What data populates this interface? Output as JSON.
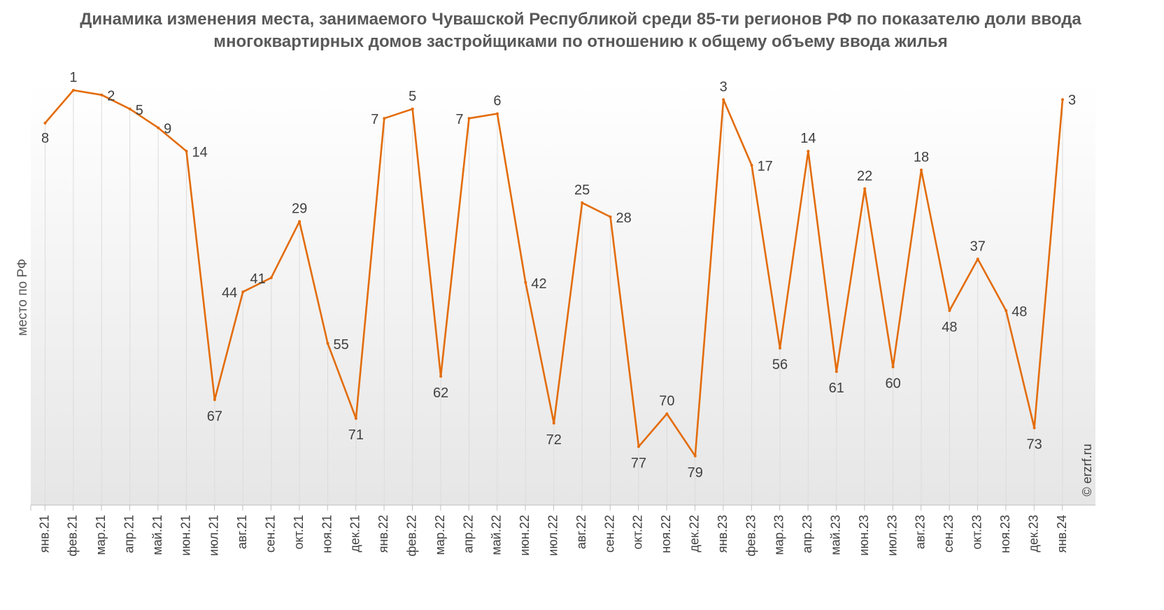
{
  "chart_data": {
    "type": "line",
    "title": "Динамика изменения места, занимаемого Чувашской Республикой среди 85-ти регионов РФ по показателю доли ввода многоквартирных домов застройщиками по отношению к общему объему ввода жилья",
    "ylabel": "место по РФ",
    "xlabel": "",
    "y_reversed": true,
    "ylim": [
      85,
      1
    ],
    "grid": "vertical",
    "line_color": "#E36C0A",
    "categories": [
      "янв.21",
      "фев.21",
      "мар.21",
      "апр.21",
      "май.21",
      "июн.21",
      "июл.21",
      "авг.21",
      "сен.21",
      "окт.21",
      "ноя.21",
      "дек.21",
      "янв.22",
      "фев.22",
      "мар.22",
      "апр.22",
      "май.22",
      "июн.22",
      "июл.22",
      "авг.22",
      "сен.22",
      "окт.22",
      "ноя.22",
      "дек.22",
      "янв.23",
      "фев.23",
      "мар.23",
      "апр.23",
      "май.23",
      "июн.23",
      "июл.23",
      "авг.23",
      "сен.23",
      "окт.23",
      "ноя.23",
      "дек.23",
      "янв.24"
    ],
    "series": [
      {
        "values": [
          8,
          1,
          2,
          5,
          9,
          14,
          67,
          44,
          41,
          29,
          55,
          71,
          7,
          5,
          62,
          7,
          6,
          42,
          72,
          25,
          28,
          77,
          70,
          79,
          3,
          17,
          56,
          14,
          61,
          22,
          60,
          18,
          48,
          37,
          48,
          73,
          3
        ]
      }
    ]
  },
  "watermark": "© erzrf.ru"
}
